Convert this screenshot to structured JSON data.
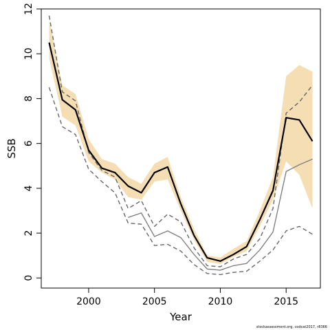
{
  "chart_data": {
    "type": "line",
    "title": "",
    "xlabel": "Year",
    "ylabel": "SSB",
    "xlim": [
      1996.4,
      2017.6
    ],
    "ylim": [
      -0.45,
      12.0
    ],
    "x_ticks": [
      2000,
      2005,
      2010,
      2015
    ],
    "y_ticks": [
      0,
      2,
      4,
      6,
      8,
      10,
      12
    ],
    "grid": false,
    "legend": "none",
    "x": [
      1997,
      1998,
      1999,
      2000,
      2001,
      2002,
      2003,
      2004,
      2005,
      2006,
      2007,
      2008,
      2009,
      2010,
      2011,
      2012,
      2013,
      2014,
      2015,
      2016,
      2017
    ],
    "band": {
      "name": "",
      "color": "#f5deb3",
      "lower": [
        9.8,
        7.2,
        6.8,
        5.2,
        4.7,
        4.4,
        3.6,
        3.5,
        4.3,
        4.4,
        3.0,
        1.7,
        0.72,
        0.62,
        0.95,
        1.2,
        2.3,
        3.5,
        5.2,
        4.6,
        3.1
      ],
      "upper": [
        11.5,
        8.6,
        8.2,
        6.2,
        5.3,
        5.1,
        4.5,
        4.2,
        5.1,
        5.4,
        3.6,
        2.2,
        1.0,
        0.92,
        1.3,
        1.65,
        3.0,
        4.5,
        9.0,
        9.5,
        9.2
      ]
    },
    "series": [
      {
        "name": "",
        "style": "solid",
        "color": "#000000",
        "width": 2.2,
        "values": [
          10.5,
          7.95,
          7.5,
          5.7,
          4.9,
          4.7,
          4.1,
          3.8,
          4.7,
          4.95,
          3.3,
          1.9,
          0.9,
          0.75,
          1.05,
          1.4,
          2.6,
          3.9,
          7.15,
          7.05,
          6.1
        ]
      },
      {
        "name": "",
        "style": "dashed",
        "color": "#666666",
        "width": 1.4,
        "values": [
          11.7,
          8.3,
          7.9,
          5.6,
          4.8,
          4.5,
          3.1,
          3.45,
          2.3,
          2.85,
          2.5,
          1.35,
          0.55,
          0.5,
          0.85,
          1.05,
          1.75,
          3.1,
          7.35,
          7.85,
          8.6
        ]
      },
      {
        "name": "",
        "style": "solid",
        "color": "#808080",
        "width": 1.4,
        "values": [
          null,
          null,
          null,
          null,
          null,
          null,
          2.7,
          2.9,
          1.85,
          2.1,
          1.8,
          1.05,
          0.4,
          0.35,
          0.55,
          0.65,
          1.25,
          2.05,
          4.75,
          5.05,
          5.3
        ]
      },
      {
        "name": "",
        "style": "dashed",
        "color": "#666666",
        "width": 1.4,
        "values": [
          8.5,
          6.75,
          6.4,
          4.85,
          4.3,
          3.8,
          2.45,
          2.4,
          1.45,
          1.5,
          1.2,
          0.6,
          0.2,
          0.15,
          0.25,
          0.3,
          0.75,
          1.25,
          2.1,
          2.3,
          1.95
        ]
      }
    ]
  },
  "footer": {
    "text": "stockassessment.org, codcat2017, r8366"
  }
}
